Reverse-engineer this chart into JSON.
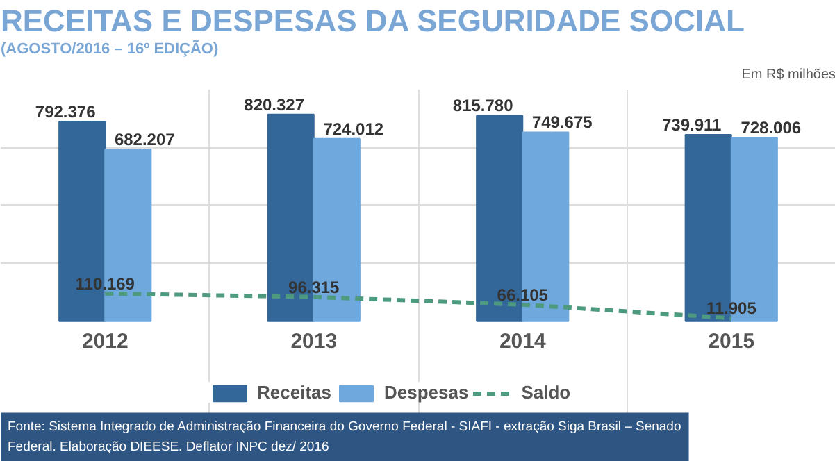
{
  "chart_data": {
    "type": "bar",
    "title": "RECEITAS E DESPESAS DA SEGURIDADE SOCIAL",
    "subtitle": "(AGOSTO/2016 – 16º EDIÇÃO)",
    "categories": [
      "2012",
      "2013",
      "2014",
      "2015"
    ],
    "series": [
      {
        "name": "Receitas",
        "color": "#336699",
        "values": [
          792376,
          820327,
          815780,
          739911
        ],
        "value_labels": [
          "792.376",
          "820.327",
          "815.780",
          "739.911"
        ]
      },
      {
        "name": "Despesas",
        "color": "#6fa8dc",
        "values": [
          682207,
          724012,
          749675,
          728006
        ],
        "value_labels": [
          "682.207",
          "724.012",
          "749.675",
          "728.006"
        ]
      },
      {
        "name": "Saldo",
        "type": "line",
        "color": "#4e9a7e",
        "line_style": "dashed",
        "values": [
          110169,
          96315,
          66105,
          11905
        ],
        "value_labels": [
          "110.169",
          "96.315",
          "66.105",
          "11.905"
        ]
      }
    ],
    "legend": "bottom",
    "grid": true,
    "annotations": [
      "Em R$ milhões",
      "Fonte: Sistema Integrado de Administração Financeira do Governo Federal - SIAFI - extração Siga Brasil – Senado Federal. Elaboração DIEESE. Deflator INPC dez/ 2016"
    ]
  }
}
